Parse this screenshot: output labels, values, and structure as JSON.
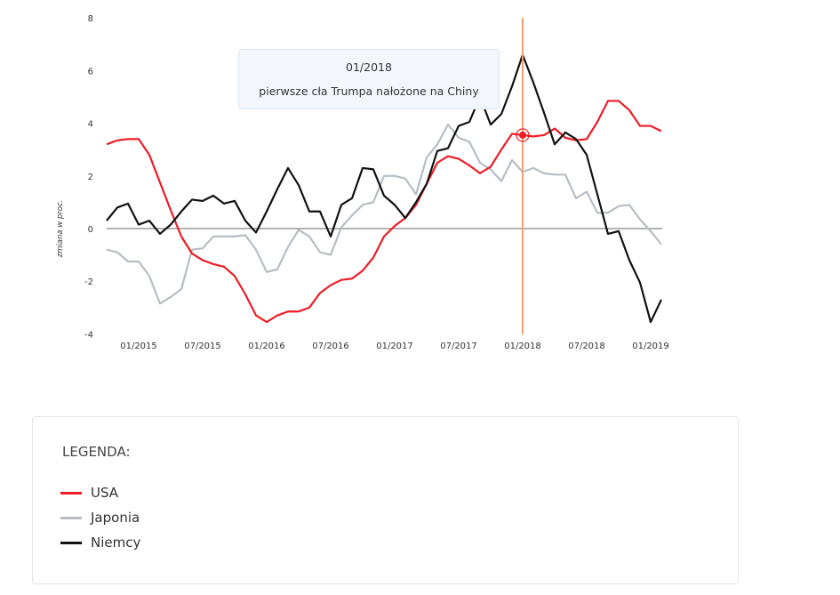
{
  "chart_data": {
    "type": "line",
    "title": "",
    "xlabel": "",
    "ylabel": "zmiana w proc.",
    "ylim": [
      -4,
      8
    ],
    "yticks": [
      8,
      6,
      4,
      2,
      0,
      -2,
      -4
    ],
    "grid": false,
    "x": [
      "10/2014",
      "11/2014",
      "12/2014",
      "01/2015",
      "02/2015",
      "03/2015",
      "04/2015",
      "05/2015",
      "06/2015",
      "07/2015",
      "08/2015",
      "09/2015",
      "10/2015",
      "11/2015",
      "12/2015",
      "01/2016",
      "02/2016",
      "03/2016",
      "04/2016",
      "05/2016",
      "06/2016",
      "07/2016",
      "08/2016",
      "09/2016",
      "10/2016",
      "11/2016",
      "12/2016",
      "01/2017",
      "02/2017",
      "03/2017",
      "04/2017",
      "05/2017",
      "06/2017",
      "07/2017",
      "08/2017",
      "09/2017",
      "10/2017",
      "11/2017",
      "12/2017",
      "01/2018",
      "02/2018",
      "03/2018",
      "04/2018",
      "05/2018",
      "06/2018",
      "07/2018",
      "08/2018",
      "09/2018",
      "10/2018",
      "11/2018",
      "12/2018",
      "01/2019",
      "02/2019"
    ],
    "xticks": [
      "01/2015",
      "07/2015",
      "01/2016",
      "07/2016",
      "01/2017",
      "07/2017",
      "01/2018",
      "07/2018",
      "01/2019"
    ],
    "series": [
      {
        "name": "USA",
        "color": "#ee1c25",
        "values": [
          3.2,
          3.35,
          3.4,
          3.4,
          2.8,
          1.75,
          0.7,
          -0.3,
          -0.95,
          -1.2,
          -1.35,
          -1.45,
          -1.8,
          -2.5,
          -3.3,
          -3.55,
          -3.3,
          -3.15,
          -3.15,
          -3.0,
          -2.45,
          -2.15,
          -1.95,
          -1.9,
          -1.6,
          -1.1,
          -0.3,
          0.1,
          0.4,
          0.9,
          1.7,
          2.5,
          2.75,
          2.65,
          2.4,
          2.1,
          2.35,
          3.0,
          3.6,
          3.55,
          3.5,
          3.55,
          3.8,
          3.45,
          3.35,
          3.4,
          4.05,
          4.85,
          4.85,
          4.5,
          3.9,
          3.9,
          3.7
        ]
      },
      {
        "name": "Japonia",
        "color": "#b6bec4",
        "values": [
          -0.8,
          -0.9,
          -1.25,
          -1.25,
          -1.8,
          -2.85,
          -2.6,
          -2.3,
          -0.8,
          -0.75,
          -0.3,
          -0.3,
          -0.3,
          -0.25,
          -0.8,
          -1.65,
          -1.55,
          -0.7,
          -0.05,
          -0.3,
          -0.9,
          -1.0,
          0.05,
          0.5,
          0.9,
          1.0,
          2.0,
          2.0,
          1.9,
          1.3,
          2.7,
          3.2,
          3.95,
          3.45,
          3.3,
          2.5,
          2.25,
          1.8,
          2.6,
          2.15,
          2.3,
          2.1,
          2.05,
          2.05,
          1.15,
          1.4,
          0.6,
          0.6,
          0.85,
          0.9,
          0.35,
          -0.1,
          -0.6
        ]
      },
      {
        "name": "Niemcy",
        "color": "#111111",
        "values": [
          0.3,
          0.8,
          0.95,
          0.15,
          0.3,
          -0.2,
          0.15,
          0.65,
          1.1,
          1.05,
          1.25,
          0.95,
          1.05,
          0.3,
          -0.15,
          0.65,
          1.5,
          2.3,
          1.65,
          0.65,
          0.65,
          -0.3,
          0.9,
          1.15,
          2.3,
          2.25,
          1.25,
          0.9,
          0.4,
          1.0,
          1.7,
          2.95,
          3.05,
          3.9,
          4.05,
          5.0,
          3.95,
          4.35,
          5.4,
          6.6,
          5.55,
          4.4,
          3.2,
          3.65,
          3.4,
          2.8,
          1.3,
          -0.2,
          -0.1,
          -1.2,
          -2.05,
          -3.55,
          -2.7
        ]
      }
    ],
    "annotation": {
      "x": "01/2018",
      "series": "USA",
      "value": 3.55,
      "date": "01/2018",
      "text": "pierwsze cła Trumpa nałożone na Chiny",
      "line_color": "#f0a070"
    }
  },
  "legend": {
    "title": "LEGENDA:",
    "items": [
      {
        "label": "USA",
        "color": "#ee1c25"
      },
      {
        "label": "Japonia",
        "color": "#b6bec4"
      },
      {
        "label": "Niemcy",
        "color": "#111111"
      }
    ]
  }
}
